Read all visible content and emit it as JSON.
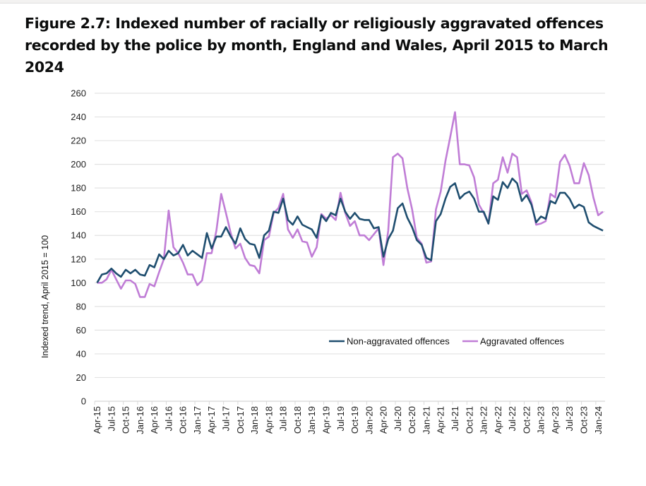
{
  "title": "Figure 2.7: Indexed number of racially or religiously aggravated offences recorded by the police by month, England and Wales, April 2015 to March 2024",
  "colors": {
    "non_aggravated": "#1f4e6f",
    "aggravated": "#c07dd6",
    "grid": "#e3e3e3"
  },
  "chart_data": {
    "type": "line",
    "title": "Figure 2.7: Indexed number of racially or religiously aggravated offences recorded by the police by month, England and Wales, April 2015 to March 2024",
    "xlabel": "",
    "ylabel": "Indexed trend, April 2015 = 100",
    "ylim": [
      0,
      260
    ],
    "yticks": [
      0,
      20,
      40,
      60,
      80,
      100,
      120,
      140,
      160,
      180,
      200,
      220,
      240,
      260
    ],
    "grid": true,
    "legend_position": "center-right",
    "x_tick_labels": [
      "Apr-15",
      "Jul-15",
      "Oct-15",
      "Jan-16",
      "Apr-16",
      "Jul-16",
      "Oct-16",
      "Jan-17",
      "Apr-17",
      "Jul-17",
      "Oct-17",
      "Jan-18",
      "Apr-18",
      "Jul-18",
      "Oct-18",
      "Jan-19",
      "Apr-19",
      "Jul-19",
      "Oct-19",
      "Jan-20",
      "Apr-20",
      "Jul-20",
      "Oct-20",
      "Jan-21",
      "Apr-21",
      "Jul-21",
      "Oct-21",
      "Jan-22",
      "Apr-22",
      "Jul-22",
      "Oct-22",
      "Jan-23",
      "Apr-23",
      "Jul-23",
      "Oct-23",
      "Jan-24"
    ],
    "series": [
      {
        "name": "Non-aggravated offences",
        "color": "#1f4e6f",
        "values": [
          100,
          107,
          108,
          112,
          108,
          105,
          111,
          108,
          111,
          107,
          106,
          115,
          113,
          124,
          120,
          127,
          123,
          125,
          132,
          123,
          127,
          124,
          121,
          142,
          129,
          139,
          139,
          147,
          139,
          133,
          146,
          137,
          133,
          132,
          121,
          140,
          144,
          160,
          159,
          171,
          153,
          149,
          156,
          149,
          147,
          145,
          138,
          157,
          152,
          159,
          157,
          171,
          160,
          154,
          159,
          154,
          153,
          153,
          146,
          147,
          122,
          137,
          144,
          163,
          167,
          155,
          147,
          136,
          132,
          121,
          119,
          152,
          158,
          171,
          181,
          184,
          171,
          175,
          177,
          171,
          160,
          160,
          150,
          173,
          170,
          185,
          180,
          188,
          184,
          169,
          174,
          166,
          151,
          156,
          154,
          169,
          167,
          176,
          176,
          171,
          163,
          166,
          164,
          151,
          148,
          146,
          144
        ]
      },
      {
        "name": "Aggravated offences",
        "color": "#c07dd6",
        "values": [
          100,
          100,
          103,
          111,
          103,
          95,
          102,
          102,
          99,
          88,
          88,
          99,
          97,
          109,
          120,
          161,
          130,
          125,
          117,
          107,
          107,
          98,
          102,
          125,
          125,
          144,
          175,
          159,
          142,
          129,
          133,
          121,
          115,
          114,
          108,
          136,
          139,
          159,
          163,
          175,
          145,
          138,
          145,
          135,
          134,
          122,
          130,
          158,
          154,
          157,
          153,
          176,
          159,
          148,
          152,
          140,
          140,
          136,
          141,
          146,
          115,
          144,
          206,
          209,
          205,
          180,
          162,
          138,
          133,
          117,
          118,
          162,
          177,
          203,
          223,
          244,
          200,
          200,
          199,
          189,
          166,
          159,
          150,
          184,
          187,
          206,
          193,
          209,
          206,
          175,
          178,
          168,
          149,
          150,
          152,
          175,
          172,
          202,
          208,
          199,
          184,
          184,
          201,
          191,
          172,
          157,
          160
        ]
      }
    ]
  }
}
